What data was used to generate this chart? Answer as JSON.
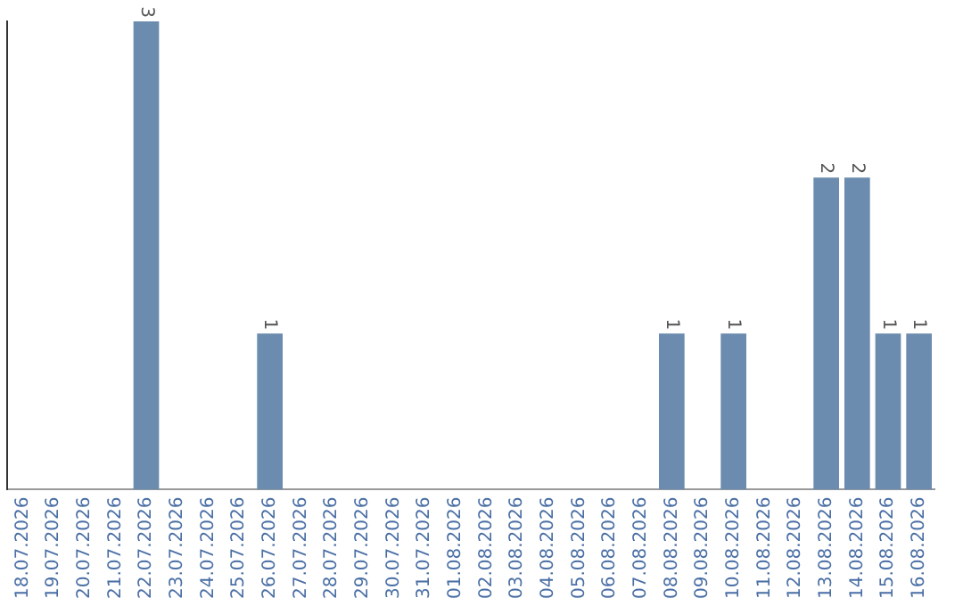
{
  "chart_data": {
    "type": "bar",
    "categories": [
      "18.07.2026",
      "19.07.2026",
      "20.07.2026",
      "21.07.2026",
      "22.07.2026",
      "23.07.2026",
      "24.07.2026",
      "25.07.2026",
      "26.07.2026",
      "27.07.2026",
      "28.07.2026",
      "29.07.2026",
      "30.07.2026",
      "31.07.2026",
      "01.08.2026",
      "02.08.2026",
      "03.08.2026",
      "04.08.2026",
      "05.08.2026",
      "06.08.2026",
      "07.08.2026",
      "08.08.2026",
      "09.08.2026",
      "10.08.2026",
      "11.08.2026",
      "12.08.2026",
      "13.08.2026",
      "14.08.2026",
      "15.08.2026",
      "16.08.2026"
    ],
    "values": [
      0,
      0,
      0,
      0,
      3,
      0,
      0,
      0,
      1,
      0,
      0,
      0,
      0,
      0,
      0,
      0,
      0,
      0,
      0,
      0,
      0,
      1,
      0,
      1,
      0,
      0,
      2,
      2,
      1,
      1
    ],
    "value_labels": [
      null,
      null,
      null,
      null,
      "3",
      null,
      null,
      null,
      "1",
      null,
      null,
      null,
      null,
      null,
      null,
      null,
      null,
      null,
      null,
      null,
      null,
      "1",
      null,
      "1",
      null,
      null,
      "2",
      "2",
      "1",
      "1"
    ],
    "color": "#6b8cae",
    "relative": false,
    "grid": false,
    "legend": false
  }
}
